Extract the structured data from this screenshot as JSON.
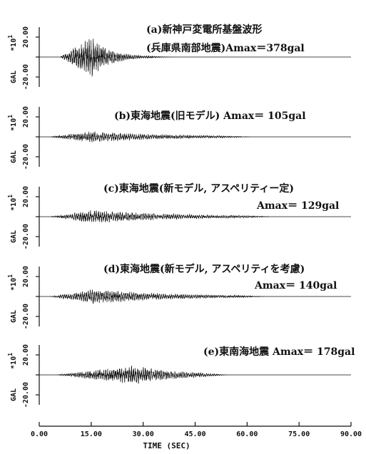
{
  "chart_data": [
    {
      "type": "line",
      "panel": "a",
      "annotation": [
        "(a)新神戸変電所基盤波形",
        "(兵庫県南部地震)Amax＝378gal"
      ],
      "amax_gal": 378,
      "envelope": {
        "onset_sec": 6,
        "peak_sec": 15,
        "decay_sec": 5.5,
        "end_sec": 40
      },
      "ylabel": "GAL",
      "y_multiplier": "*10",
      "y_multiplier_exp": "1",
      "yticks": [
        "20.00",
        "",
        "-20.00"
      ],
      "ylim": [
        -30,
        30
      ]
    },
    {
      "type": "line",
      "panel": "b",
      "annotation": [
        "(b)東海地震(旧モデル) Amax＝ 105gal"
      ],
      "amax_gal": 105,
      "envelope": {
        "onset_sec": 3,
        "peak_sec": 15,
        "decay_sec": 22,
        "end_sec": 62
      },
      "ylabel": "GAL",
      "y_multiplier": "*10",
      "y_multiplier_exp": "1",
      "yticks": [
        "20.00",
        "",
        "-20.00"
      ],
      "ylim": [
        -30,
        30
      ]
    },
    {
      "type": "line",
      "panel": "c",
      "annotation": [
        "(c)東海地震(新モデル, アスペリティー定)",
        "Amax＝ 129gal"
      ],
      "amax_gal": 129,
      "envelope": {
        "onset_sec": 3,
        "peak_sec": 16,
        "decay_sec": 24,
        "end_sec": 68
      },
      "ylabel": "GAL",
      "y_multiplier": "*10",
      "y_multiplier_exp": "1",
      "yticks": [
        "20.00",
        "",
        "-20.00"
      ],
      "ylim": [
        -30,
        30
      ]
    },
    {
      "type": "line",
      "panel": "d",
      "annotation": [
        "(d)東海地震(新モデル, アスペリティを考慮)",
        "Amax＝ 140gal"
      ],
      "amax_gal": 140,
      "envelope": {
        "onset_sec": 3,
        "peak_sec": 16,
        "decay_sec": 22,
        "end_sec": 66
      },
      "ylabel": "GAL",
      "y_multiplier": "*10",
      "y_multiplier_exp": "1",
      "yticks": [
        "20.00",
        "",
        "-20.00"
      ],
      "ylim": [
        -30,
        30
      ]
    },
    {
      "type": "line",
      "panel": "e",
      "annotation": [
        "(e)東南海地震 Amax＝ 178gal"
      ],
      "amax_gal": 178,
      "envelope": {
        "onset_sec": 5,
        "peak_sec": 27,
        "decay_sec": 14,
        "end_sec": 55
      },
      "ylabel": "GAL",
      "y_multiplier": "*10",
      "y_multiplier_exp": "1",
      "yticks": [
        "20.00",
        "",
        "-20.00"
      ],
      "ylim": [
        -30,
        30
      ]
    }
  ],
  "x_axis": {
    "label": "TIME (SEC)",
    "xlim": [
      0,
      90
    ],
    "ticks": [
      "0.00",
      "15.00",
      "30.00",
      "45.00",
      "60.00",
      "75.00",
      "90.00"
    ]
  }
}
